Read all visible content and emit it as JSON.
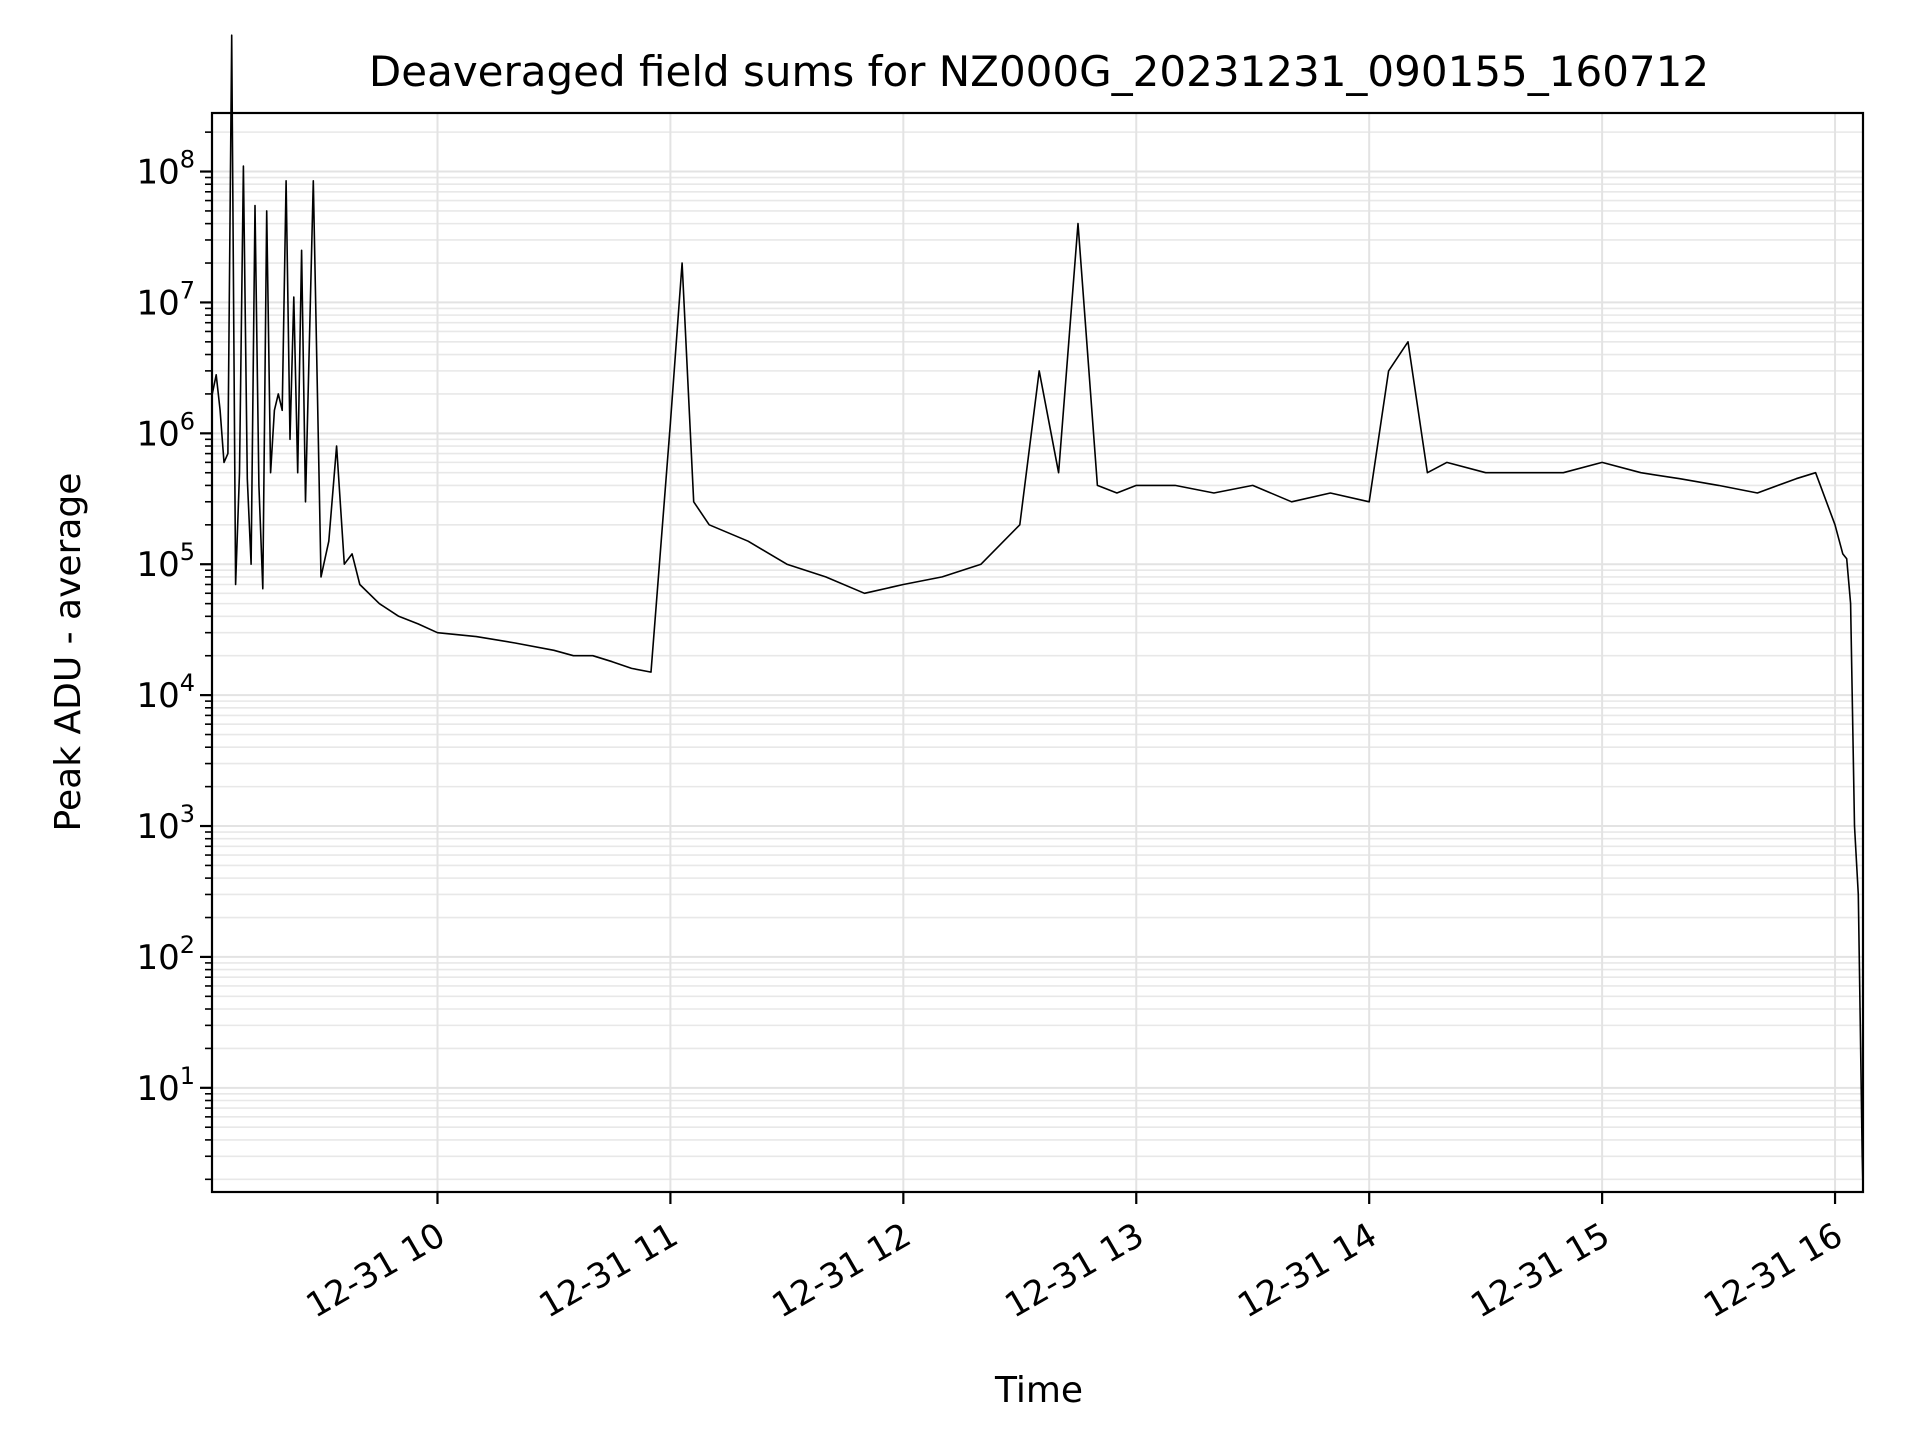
{
  "chart_data": {
    "type": "line",
    "title": "Deaveraged field sums for NZ000G_20231231_090155_160712",
    "xlabel": "Time",
    "ylabel": "Peak ADU - average",
    "yscale": "log",
    "ylim": [
      1.6,
      280000000
    ],
    "xlim": [
      "12-31 09:01:55",
      "12-31 16:07:12"
    ],
    "grid": "on",
    "x_ticks": [
      "12-31 10",
      "12-31 11",
      "12-31 12",
      "12-31 13",
      "12-31 14",
      "12-31 15",
      "12-31 16"
    ],
    "y_tick_exponents": [
      "1",
      "2",
      "3",
      "4",
      "5",
      "6",
      "7",
      "8"
    ],
    "y_tick_base": "10",
    "line_color": "#000000",
    "series": [
      {
        "x": [
          "12-31 09:02",
          "12-31 09:03",
          "12-31 09:04",
          "12-31 09:05",
          "12-31 09:06",
          "12-31 09:07",
          "12-31 09:08",
          "12-31 09:09",
          "12-31 09:10",
          "12-31 09:11",
          "12-31 09:12",
          "12-31 09:13",
          "12-31 09:14",
          "12-31 09:15",
          "12-31 09:16",
          "12-31 09:17",
          "12-31 09:18",
          "12-31 09:19",
          "12-31 09:20",
          "12-31 09:21",
          "12-31 09:22",
          "12-31 09:23",
          "12-31 09:24",
          "12-31 09:25",
          "12-31 09:26",
          "12-31 09:28",
          "12-31 09:30",
          "12-31 09:32",
          "12-31 09:34",
          "12-31 09:36",
          "12-31 09:38",
          "12-31 09:40",
          "12-31 09:45",
          "12-31 09:50",
          "12-31 09:55",
          "12-31 10:00",
          "12-31 10:10",
          "12-31 10:20",
          "12-31 10:30",
          "12-31 10:35",
          "12-31 10:40",
          "12-31 10:45",
          "12-31 10:50",
          "12-31 10:55",
          "12-31 11:00",
          "12-31 11:03",
          "12-31 11:06",
          "12-31 11:10",
          "12-31 11:20",
          "12-31 11:30",
          "12-31 11:40",
          "12-31 11:50",
          "12-31 12:00",
          "12-31 12:10",
          "12-31 12:20",
          "12-31 12:30",
          "12-31 12:35",
          "12-31 12:40",
          "12-31 12:45",
          "12-31 12:50",
          "12-31 12:55",
          "12-31 13:00",
          "12-31 13:10",
          "12-31 13:20",
          "12-31 13:30",
          "12-31 13:40",
          "12-31 13:50",
          "12-31 14:00",
          "12-31 14:05",
          "12-31 14:10",
          "12-31 14:15",
          "12-31 14:20",
          "12-31 14:30",
          "12-31 14:40",
          "12-31 14:50",
          "12-31 15:00",
          "12-31 15:10",
          "12-31 15:20",
          "12-31 15:30",
          "12-31 15:40",
          "12-31 15:50",
          "12-31 15:55",
          "12-31 16:00",
          "12-31 16:02",
          "12-31 16:03",
          "12-31 16:04",
          "12-31 16:05",
          "12-31 16:06",
          "12-31 16:06:30",
          "12-31 16:07",
          "12-31 16:07:12"
        ],
        "values": [
          2000000,
          2800000,
          1500000,
          600000,
          700000,
          1100000000,
          70000,
          500000,
          110000000,
          450000,
          100000,
          55000000,
          400000,
          65000,
          50000000,
          500000,
          1500000,
          2000000,
          1500000,
          85000000,
          900000,
          11000000,
          500000,
          25000000,
          300000,
          85000000,
          80000,
          150000,
          800000,
          100000,
          120000,
          70000,
          50000,
          40000,
          35000,
          30000,
          28000,
          25000,
          22000,
          20000,
          20000,
          18000,
          16000,
          15000,
          1200000,
          20000000,
          300000,
          200000,
          150000,
          100000,
          80000,
          60000,
          70000,
          80000,
          100000,
          200000,
          3000000,
          500000,
          40000000,
          400000,
          350000,
          400000,
          400000,
          350000,
          400000,
          300000,
          350000,
          300000,
          3000000,
          5000000,
          500000,
          600000,
          500000,
          500000,
          500000,
          600000,
          500000,
          450000,
          400000,
          350000,
          450000,
          500000,
          200000,
          120000,
          110000,
          50000,
          1000,
          300,
          30,
          3,
          1.7
        ]
      }
    ]
  }
}
